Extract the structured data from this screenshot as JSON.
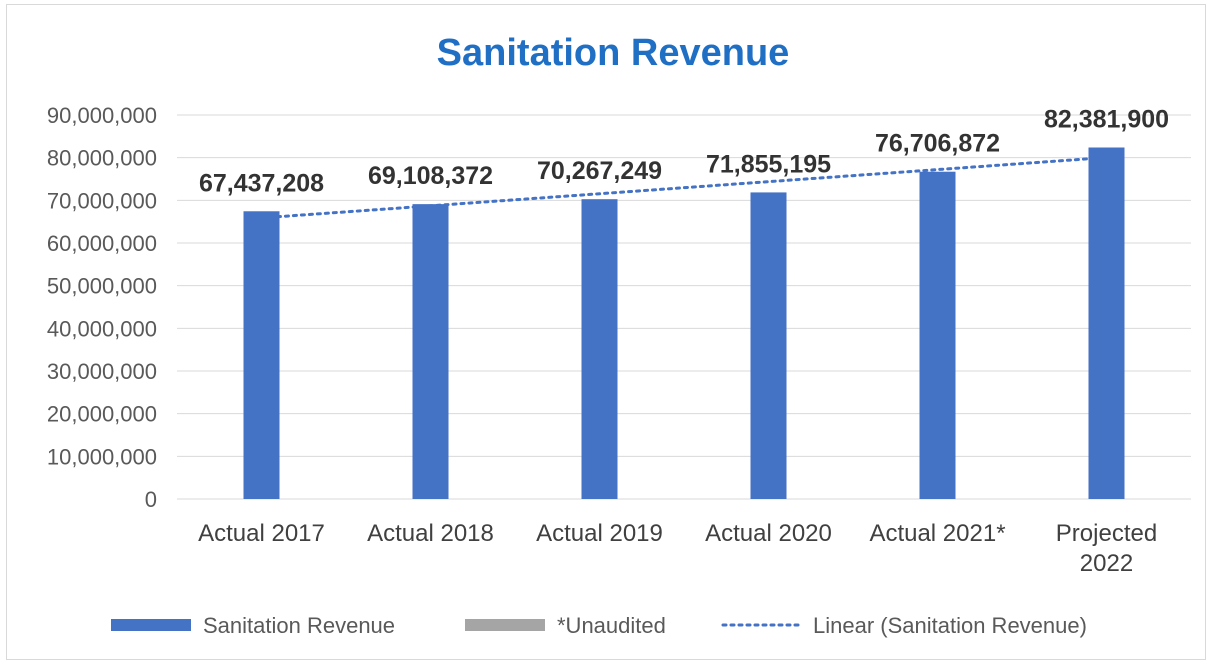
{
  "chart_data": {
    "type": "bar",
    "title": "Sanitation Revenue",
    "categories": [
      "Actual 2017",
      "Actual 2018",
      "Actual 2019",
      "Actual 2020",
      "Actual 2021*",
      "Projected 2022"
    ],
    "series": [
      {
        "name": "Sanitation Revenue",
        "values": [
          67437208,
          69108372,
          70267249,
          71855195,
          76706872,
          82381900
        ],
        "data_labels": [
          "67,437,208",
          "69,108,372",
          "70,267,249",
          "71,855,195",
          "76,706,872",
          "82,381,900"
        ],
        "color": "#4472c4"
      }
    ],
    "trendline": {
      "type": "linear",
      "name": "Linear (Sanitation Revenue)",
      "color": "#4472c4"
    },
    "ylim": [
      0,
      90000000
    ],
    "yticks": [
      0,
      10000000,
      20000000,
      30000000,
      40000000,
      50000000,
      60000000,
      70000000,
      80000000,
      90000000
    ],
    "ytick_labels": [
      "0",
      "10,000,000",
      "20,000,000",
      "30,000,000",
      "40,000,000",
      "50,000,000",
      "60,000,000",
      "70,000,000",
      "80,000,000",
      "90,000,000"
    ],
    "grid": true,
    "legend": {
      "placement": "bottom",
      "entries": [
        {
          "label": "Sanitation Revenue",
          "color": "#4472c4"
        },
        {
          "label": "*Unaudited",
          "color": "#a5a5a5"
        },
        {
          "label": "Linear (Sanitation Revenue)",
          "color": "#4472c4"
        }
      ]
    }
  }
}
